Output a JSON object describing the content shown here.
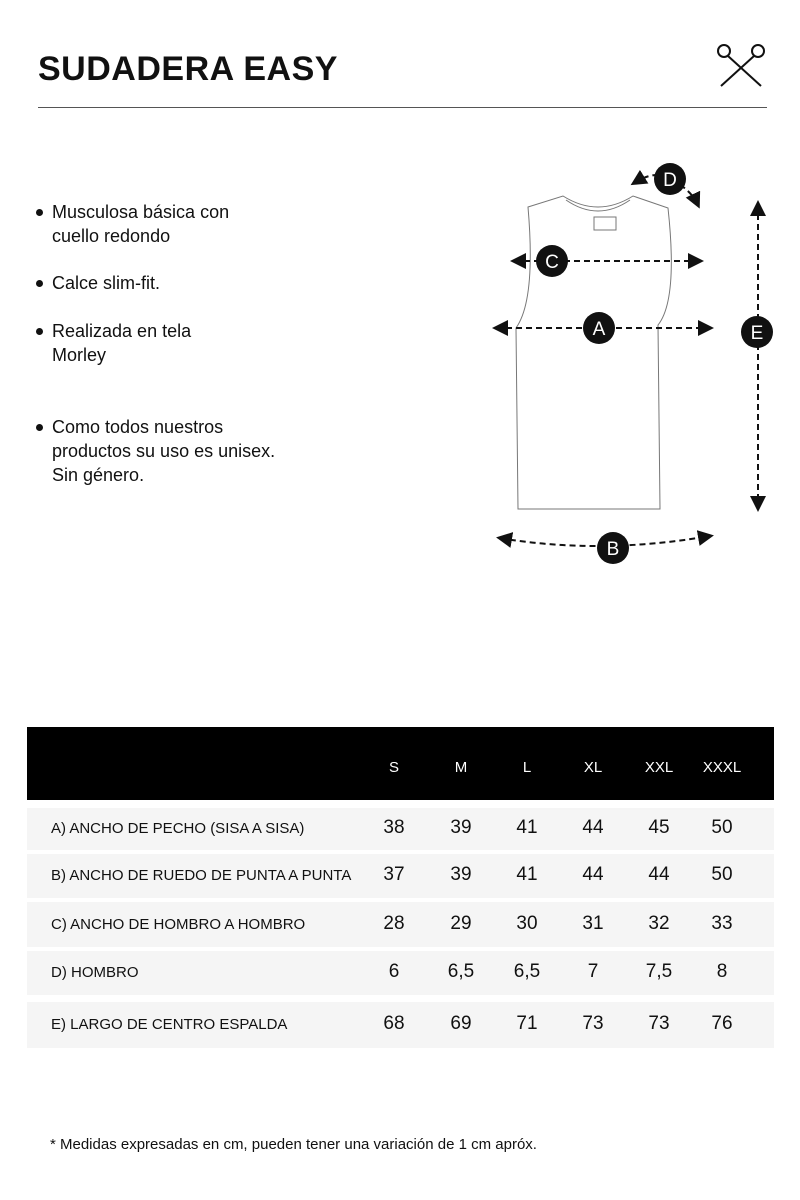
{
  "header": {
    "title": "SUDADERA EASY",
    "logo_icon": "scissors-icon"
  },
  "features": [
    "Musculosa básica con\ncuello redondo",
    "Calce slim-fit.",
    "Realizada en tela\nMorley",
    "Como todos nuestros\nproductos su uso es unisex.\nSin género."
  ],
  "diagram": {
    "labels": {
      "a": "A",
      "b": "B",
      "c": "C",
      "d": "D",
      "e": "E"
    }
  },
  "size_table": {
    "sizes": [
      "S",
      "M",
      "L",
      "XL",
      "XXL",
      "XXXL"
    ],
    "rows": [
      {
        "label": "A) ANCHO DE PECHO (SISA A SISA)",
        "values": [
          "38",
          "39",
          "41",
          "44",
          "45",
          "50"
        ]
      },
      {
        "label": "B) ANCHO DE RUEDO DE PUNTA A PUNTA",
        "values": [
          "37",
          "39",
          "41",
          "44",
          "44",
          "50"
        ]
      },
      {
        "label": "C) ANCHO DE HOMBRO A HOMBRO",
        "values": [
          "28",
          "29",
          "30",
          "31",
          "32",
          "33"
        ]
      },
      {
        "label": "D) HOMBRO",
        "values": [
          "6",
          "6,5",
          "6,5",
          "7",
          "7,5",
          "8"
        ]
      },
      {
        "label": "E) LARGO DE CENTRO ESPALDA",
        "values": [
          "68",
          "69",
          "71",
          "73",
          "73",
          "76"
        ]
      }
    ]
  },
  "footnote": "* Medidas expresadas en cm, pueden tener una variación de 1 cm apróx."
}
